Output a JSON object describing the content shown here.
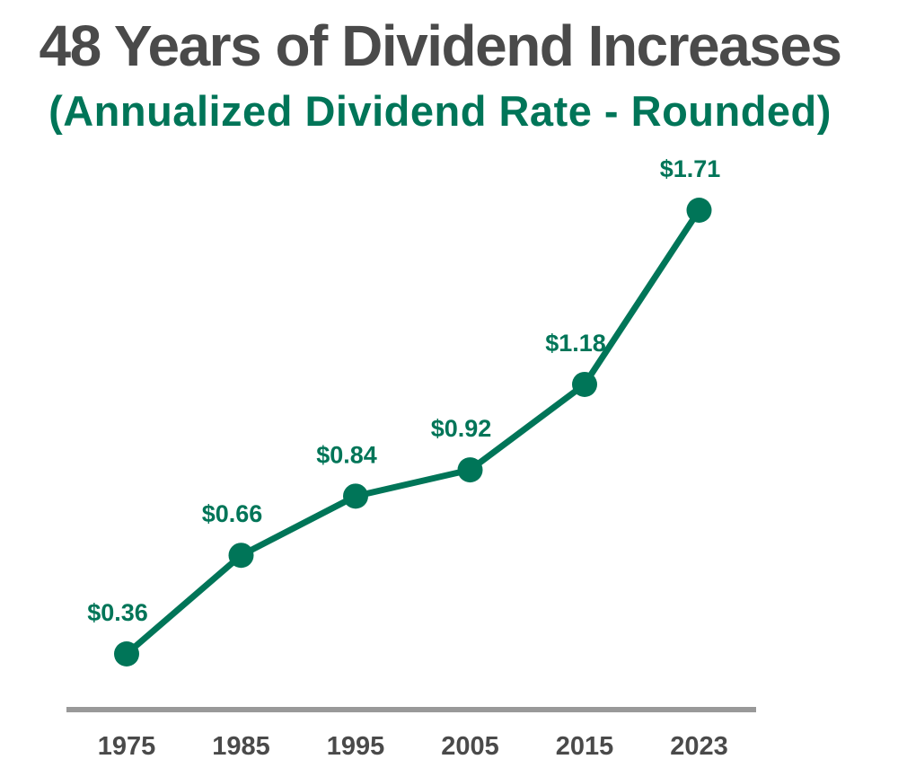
{
  "title": "48 Years of Dividend Increases",
  "subtitle": "(Annualized Dividend Rate - Rounded)",
  "colors": {
    "accent": "#007558",
    "title": "#4a4a4a",
    "axis": "#999999"
  },
  "chart_data": {
    "type": "line",
    "title": "48 Years of Dividend Increases",
    "subtitle": "(Annualized Dividend Rate - Rounded)",
    "categories": [
      "1975",
      "1985",
      "1995",
      "2005",
      "2015",
      "2023"
    ],
    "values": [
      0.36,
      0.66,
      0.84,
      0.92,
      1.18,
      1.71
    ],
    "data_labels": [
      "$0.36",
      "$0.66",
      "$0.84",
      "$0.92",
      "$1.18",
      "$1.71"
    ],
    "xlabel": "",
    "ylabel": "",
    "ylim": [
      0.36,
      1.71
    ],
    "grid": false,
    "legend": "none"
  }
}
